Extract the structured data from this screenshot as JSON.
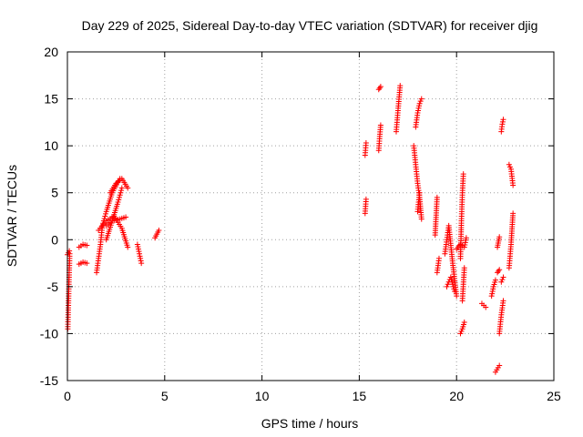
{
  "chart_data": {
    "type": "scatter",
    "title": "Day 229 of 2025, Sidereal Day-to-day VTEC variation (SDTVAR) for receiver djig",
    "xlabel": "GPS time / hours",
    "ylabel": "SDTVAR / TECUs",
    "xlim": [
      0,
      25
    ],
    "ylim": [
      -15,
      20
    ],
    "xticks": [
      "0",
      "5",
      "10",
      "15",
      "20",
      "25"
    ],
    "yticks": [
      "-15",
      "-10",
      "-5",
      "0",
      "5",
      "10",
      "15",
      "20"
    ],
    "grid": true,
    "marker": "plus",
    "color": "#ff0000",
    "segments": [
      {
        "x": [
          0.0,
          0.1
        ],
        "y": [
          -1.6,
          -1.2
        ]
      },
      {
        "x": [
          0.02,
          0.05,
          0.08,
          0.12
        ],
        "y": [
          -9.5,
          -7.0,
          -4.5,
          -1.5
        ]
      },
      {
        "x": [
          0.6,
          0.8,
          1.0
        ],
        "y": [
          -2.6,
          -2.4,
          -2.5
        ]
      },
      {
        "x": [
          0.6,
          0.8,
          1.0
        ],
        "y": [
          -0.8,
          -0.5,
          -0.6
        ]
      },
      {
        "x": [
          1.5,
          1.7,
          1.8,
          2.0,
          2.3,
          2.7
        ],
        "y": [
          -3.5,
          -0.5,
          1.5,
          3.0,
          5.0,
          6.5
        ]
      },
      {
        "x": [
          2.0,
          2.3,
          2.7,
          3.0
        ],
        "y": [
          1.5,
          2.0,
          2.2,
          2.4
        ]
      },
      {
        "x": [
          1.6,
          2.0,
          2.4,
          2.8,
          3.1
        ],
        "y": [
          1.0,
          2.0,
          2.5,
          1.2,
          -0.8
        ]
      },
      {
        "x": [
          2.2,
          2.5,
          2.8,
          3.1
        ],
        "y": [
          5.0,
          6.0,
          6.5,
          5.5
        ]
      },
      {
        "x": [
          2.0,
          2.3,
          2.6,
          2.8
        ],
        "y": [
          0.0,
          2.0,
          4.0,
          5.5
        ]
      },
      {
        "x": [
          3.6,
          3.7,
          3.8
        ],
        "y": [
          -0.5,
          -1.5,
          -2.5
        ]
      },
      {
        "x": [
          4.5,
          4.7
        ],
        "y": [
          0.2,
          1.0
        ]
      },
      {
        "x": [
          15.3,
          15.35
        ],
        "y": [
          9.0,
          10.3
        ]
      },
      {
        "x": [
          15.3,
          15.35
        ],
        "y": [
          2.8,
          4.3
        ]
      },
      {
        "x": [
          16.0,
          16.1
        ],
        "y": [
          16.0,
          16.3
        ]
      },
      {
        "x": [
          16.0,
          16.05,
          16.1
        ],
        "y": [
          9.5,
          11.0,
          12.2
        ]
      },
      {
        "x": [
          16.9,
          17.0,
          17.1
        ],
        "y": [
          11.5,
          14.0,
          16.4
        ]
      },
      {
        "x": [
          17.9,
          18.0,
          18.1,
          18.2
        ],
        "y": [
          12.0,
          13.5,
          14.5,
          15.0
        ]
      },
      {
        "x": [
          17.8,
          17.9,
          18.0,
          18.1,
          18.2
        ],
        "y": [
          10.0,
          8.0,
          6.0,
          4.5,
          2.2
        ]
      },
      {
        "x": [
          18.0,
          18.1
        ],
        "y": [
          3.0,
          5.0
        ]
      },
      {
        "x": [
          18.9,
          19.0
        ],
        "y": [
          0.5,
          4.5
        ]
      },
      {
        "x": [
          19.0,
          19.1
        ],
        "y": [
          -3.5,
          -2.0
        ]
      },
      {
        "x": [
          19.4,
          19.6,
          19.8,
          20.0
        ],
        "y": [
          -1.5,
          1.5,
          -2.5,
          -6.0
        ]
      },
      {
        "x": [
          19.5,
          19.7,
          19.9
        ],
        "y": [
          -5.0,
          -4.0,
          -5.5
        ]
      },
      {
        "x": [
          20.2,
          20.25,
          20.3,
          20.35
        ],
        "y": [
          -2.0,
          2.0,
          5.0,
          7.0
        ]
      },
      {
        "x": [
          20.0,
          20.2,
          20.4,
          20.5
        ],
        "y": [
          -1.0,
          -0.5,
          -0.8,
          0.2
        ]
      },
      {
        "x": [
          20.2,
          20.3,
          20.4
        ],
        "y": [
          -10.0,
          -9.5,
          -8.8
        ]
      },
      {
        "x": [
          20.3,
          20.4
        ],
        "y": [
          -6.5,
          -3.0
        ]
      },
      {
        "x": [
          21.3,
          21.5
        ],
        "y": [
          -6.8,
          -7.2
        ]
      },
      {
        "x": [
          21.8,
          21.9,
          22.0
        ],
        "y": [
          -6.0,
          -5.0,
          -4.3
        ]
      },
      {
        "x": [
          22.0,
          22.2
        ],
        "y": [
          -14.1,
          -13.4
        ]
      },
      {
        "x": [
          22.1,
          22.2
        ],
        "y": [
          -3.5,
          -3.2
        ]
      },
      {
        "x": [
          22.1,
          22.2
        ],
        "y": [
          -0.8,
          0.3
        ]
      },
      {
        "x": [
          22.2,
          22.3,
          22.4
        ],
        "y": [
          -10.0,
          -8.0,
          -6.5
        ]
      },
      {
        "x": [
          22.3,
          22.4
        ],
        "y": [
          -4.5,
          -4.0
        ]
      },
      {
        "x": [
          22.3,
          22.35,
          22.4
        ],
        "y": [
          11.5,
          12.3,
          12.8
        ]
      },
      {
        "x": [
          22.7,
          22.8,
          22.9
        ],
        "y": [
          -3.0,
          -0.5,
          2.8
        ]
      },
      {
        "x": [
          22.7,
          22.8,
          22.9
        ],
        "y": [
          8.0,
          7.5,
          5.8
        ]
      }
    ]
  }
}
